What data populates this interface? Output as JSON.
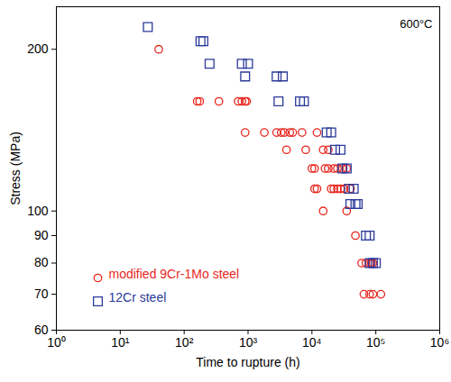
{
  "chart_data": {
    "type": "scatter",
    "x_label": "Time to rupture (h)",
    "y_label": "Stress (MPa)",
    "annotation": "600°C",
    "log": true,
    "grid": false,
    "legend": "bottom-left",
    "xlim": [
      1,
      1000000
    ],
    "ylim": [
      60,
      240
    ],
    "xticks": [
      {
        "value": 1,
        "label": "10⁰"
      },
      {
        "value": 10,
        "label": "10¹"
      },
      {
        "value": 100,
        "label": "10²"
      },
      {
        "value": 1000,
        "label": "10³"
      },
      {
        "value": 10000,
        "label": "10⁴"
      },
      {
        "value": 100000,
        "label": "10⁵"
      },
      {
        "value": 1000000,
        "label": "10⁶"
      }
    ],
    "yticks": [
      60,
      70,
      80,
      90,
      100,
      200
    ],
    "series": [
      {
        "name": "modified 9Cr-1Mo steel",
        "color": "#e8261e",
        "marker": "circle",
        "x": [
          40,
          160,
          175,
          350,
          700,
          800,
          900,
          950,
          900,
          1800,
          2800,
          3300,
          3700,
          4500,
          5000,
          7000,
          12000,
          4000,
          8000,
          15000,
          18000,
          10000,
          11000,
          16000,
          18000,
          22000,
          25000,
          30000,
          35000,
          11000,
          12000,
          20000,
          22000,
          25000,
          28000,
          32000,
          40000,
          15000,
          35000,
          48000,
          60000,
          70000,
          80000,
          85000,
          90000,
          65000,
          80000,
          90000,
          120000
        ],
        "values": [
          200,
          160,
          160,
          160,
          160,
          160,
          160,
          160,
          140,
          140,
          140,
          140,
          140,
          140,
          140,
          140,
          140,
          130,
          130,
          130,
          130,
          120,
          120,
          120,
          120,
          120,
          120,
          120,
          120,
          110,
          110,
          110,
          110,
          110,
          110,
          110,
          110,
          100,
          100,
          90,
          80,
          80,
          80,
          80,
          80,
          70,
          70,
          70,
          70
        ]
      },
      {
        "name": "12Cr steel",
        "color": "#2b3a9a",
        "marker": "square",
        "x": [
          27,
          180,
          200,
          250,
          800,
          1000,
          900,
          2800,
          3500,
          3000,
          6500,
          7500,
          17000,
          20000,
          23000,
          28000,
          30000,
          35000,
          38000,
          45000,
          40000,
          48000,
          52000,
          70000,
          80000,
          80000,
          90000,
          100000
        ],
        "values": [
          220,
          207,
          207,
          188,
          188,
          188,
          178,
          178,
          178,
          160,
          160,
          160,
          140,
          140,
          130,
          130,
          120,
          120,
          110,
          110,
          103,
          103,
          103,
          90,
          90,
          80,
          80,
          80
        ]
      }
    ]
  }
}
